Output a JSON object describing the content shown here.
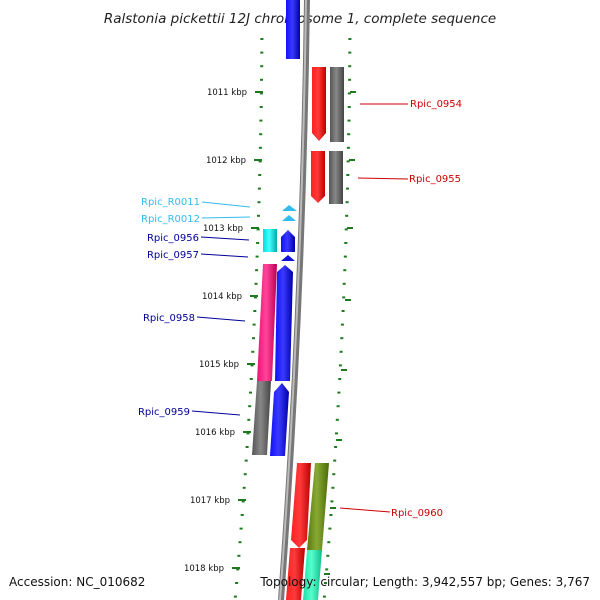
{
  "title": "Ralstonia pickettii 12J chromosome 1, complete sequence",
  "footer": {
    "accession": "Accession: NC_010682",
    "summary": "Topology: circular; Length: 3,942,557 bp; Genes: 3,767"
  },
  "ticks": [
    {
      "label": "1011 kbp"
    },
    {
      "label": "1012 kbp"
    },
    {
      "label": "1013 kbp"
    },
    {
      "label": "1014 kbp"
    },
    {
      "label": "1015 kbp"
    },
    {
      "label": "1016 kbp"
    },
    {
      "label": "1017 kbp"
    },
    {
      "label": "1018 kbp"
    }
  ],
  "genes": [
    {
      "name": "Rpic_0954",
      "color": "#cc0000"
    },
    {
      "name": "Rpic_0955",
      "color": "#cc0000"
    },
    {
      "name": "Rpic_R0011",
      "color": "#33bbee"
    },
    {
      "name": "Rpic_R0012",
      "color": "#33bbee"
    },
    {
      "name": "Rpic_0956",
      "color": "#000099"
    },
    {
      "name": "Rpic_0957",
      "color": "#000099"
    },
    {
      "name": "Rpic_0958",
      "color": "#000099"
    },
    {
      "name": "Rpic_0959",
      "color": "#000099"
    },
    {
      "name": "Rpic_0960",
      "color": "#cc0000"
    }
  ]
}
